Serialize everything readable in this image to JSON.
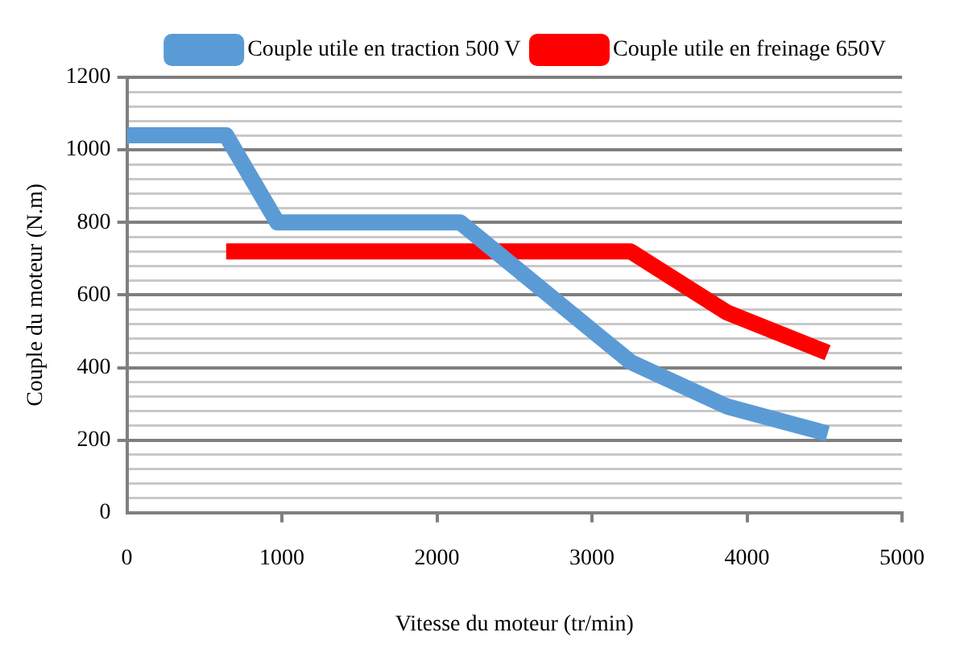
{
  "chart_data": {
    "type": "line",
    "xlabel": "Vitesse du moteur (tr/min)",
    "ylabel": "Couple du moteur (N.m)",
    "xlim": [
      0,
      5000
    ],
    "xticks": [
      0,
      1000,
      2000,
      3000,
      4000,
      5000
    ],
    "ylim": [
      0,
      1200
    ],
    "yticks": [
      0,
      {
        "value": 40,
        "label": null
      },
      {
        "value": 80,
        "label": null
      },
      {
        "value": 120,
        "label": null
      },
      {
        "value": 160,
        "label": null
      },
      200,
      {
        "value": 240,
        "label": null
      },
      {
        "value": 280,
        "label": null
      },
      {
        "value": 320,
        "label": null
      },
      {
        "value": 360,
        "label": null
      },
      400,
      {
        "value": 440,
        "label": null
      },
      {
        "value": 480,
        "label": null
      },
      {
        "value": 520,
        "label": null
      },
      {
        "value": 560,
        "label": null
      },
      600,
      {
        "value": 640,
        "label": null
      },
      {
        "value": 680,
        "label": null
      },
      {
        "value": 720,
        "label": null
      },
      {
        "value": 760,
        "label": null
      },
      800,
      {
        "value": 840,
        "label": null
      },
      {
        "value": 880,
        "label": null
      },
      {
        "value": 920,
        "label": null
      },
      {
        "value": 960,
        "label": null
      },
      1000,
      {
        "value": 1040,
        "label": null
      },
      {
        "value": 1080,
        "label": null
      },
      {
        "value": 1120,
        "label": null
      },
      {
        "value": 1160,
        "label": null
      },
      1200
    ],
    "grid": "y",
    "legend": "top right",
    "marker": "none",
    "line_style": "solid",
    "series": [
      {
        "name": "Couple utile en traction 500 V",
        "color": "#5b9bd5",
        "x": [
          0,
          640,
          970,
          2150,
          3250,
          3870,
          4520
        ],
        "values": [
          1040,
          1040,
          800,
          800,
          415,
          293,
          218
        ]
      },
      {
        "name": "Couple utile en freinage 650V",
        "color": "#ff0000",
        "x": [
          640,
          3250,
          3870,
          4520
        ],
        "values": [
          720,
          720,
          552,
          441
        ]
      }
    ]
  }
}
